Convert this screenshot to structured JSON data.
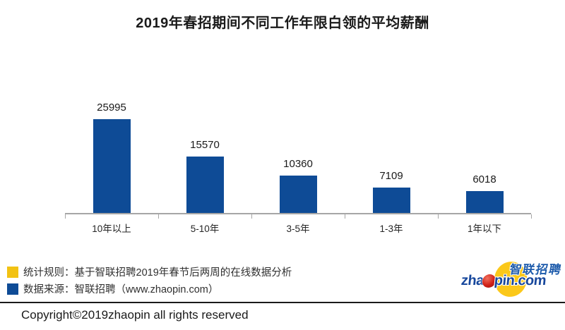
{
  "title": "2019年春招期间不同工作年限白领的平均薪酬",
  "chart_data": {
    "type": "bar",
    "categories": [
      "10年以上",
      "5-10年",
      "3-5年",
      "1-3年",
      "1年以下"
    ],
    "values": [
      25995,
      15570,
      10360,
      7109,
      6018
    ],
    "title": "2019年春招期间不同工作年限白领的平均薪酬",
    "xlabel": "",
    "ylabel": "",
    "ylim": [
      0,
      26000
    ],
    "grid": false,
    "value_labels_shown": true,
    "bar_color": "#0e4b96",
    "axis_color": "#a6a6a6",
    "legend_position": "bottom-left"
  },
  "legend": {
    "items": [
      {
        "swatch_color": "#f2c213",
        "label": "统计规则：基于智联招聘2019年春节后两周的在线数据分析"
      },
      {
        "swatch_color": "#0e4b96",
        "label": "数据来源：智联招聘（www.zhaopin.com）"
      }
    ]
  },
  "logo": {
    "cn_text": "智联招聘",
    "en_prefix": "zha",
    "en_suffix": "pin.com",
    "colors": {
      "blue": "#17479c",
      "yellow": "#fbc81a",
      "red": "#d02016"
    }
  },
  "footer": {
    "copyright": "Copyright©2019zhaopin all rights reserved"
  }
}
